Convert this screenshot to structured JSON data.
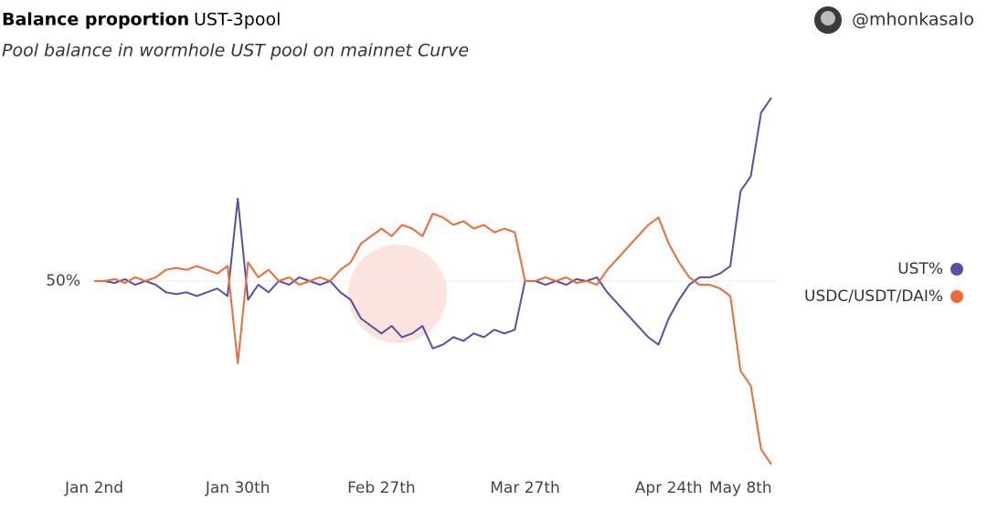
{
  "header": {
    "query": "UST-3pool",
    "author": "@mhonkasalo"
  },
  "chart_data": {
    "type": "line",
    "title": "Balance proportion",
    "subtitle": "Pool balance in wormhole UST pool on mainnet Curve",
    "categories": [
      "Jan 2nd",
      null,
      null,
      null,
      null,
      null,
      null,
      null,
      null,
      null,
      null,
      null,
      null,
      null,
      "Jan 30th",
      null,
      null,
      null,
      null,
      null,
      null,
      null,
      null,
      null,
      null,
      null,
      null,
      null,
      "Feb 27th",
      null,
      null,
      null,
      null,
      null,
      null,
      null,
      null,
      null,
      null,
      null,
      null,
      null,
      "Mar 27th",
      null,
      null,
      null,
      null,
      null,
      null,
      null,
      null,
      null,
      null,
      null,
      null,
      null,
      "Apr 24th",
      null,
      null,
      null,
      null,
      null,
      null,
      "May 8th",
      null,
      null,
      null
    ],
    "series": [
      {
        "name": "UST%",
        "color": "#5451a6",
        "values": [
          50,
          50,
          49.5,
          50.5,
          49,
          50,
          49,
          47,
          46.5,
          47,
          46,
          47,
          48,
          46,
          72,
          45,
          49,
          47,
          50,
          49,
          51,
          50,
          49,
          50,
          47,
          45,
          40,
          38,
          36,
          38,
          35,
          36,
          38,
          32,
          33,
          35,
          34,
          36,
          35,
          37,
          36,
          37,
          50,
          50,
          49,
          50,
          49,
          50.5,
          50,
          51,
          47,
          44,
          41,
          38,
          35,
          33,
          40,
          45,
          49,
          51,
          51,
          52,
          54,
          74,
          78,
          95,
          99
        ]
      },
      {
        "name": "USDC/USDT/DAI%",
        "color": "#ef6a3a",
        "values": [
          50,
          50,
          50.5,
          49.5,
          51,
          50,
          51,
          53,
          53.5,
          53,
          54,
          53,
          52,
          54,
          28,
          55,
          51,
          53,
          50,
          51,
          49,
          50,
          51,
          50,
          53,
          55,
          60,
          62,
          64,
          62,
          65,
          64,
          62,
          68,
          67,
          65,
          66,
          64,
          65,
          63,
          64,
          63,
          50,
          50,
          51,
          50,
          51,
          49.5,
          50,
          49,
          53,
          56,
          59,
          62,
          65,
          67,
          60,
          55,
          51,
          49,
          49,
          48,
          46,
          26,
          22,
          5,
          1
        ]
      }
    ],
    "ylim": [
      0,
      100
    ],
    "yticks": [
      {
        "value": 50,
        "label": "50%"
      }
    ],
    "grid": true,
    "legend": "right"
  }
}
